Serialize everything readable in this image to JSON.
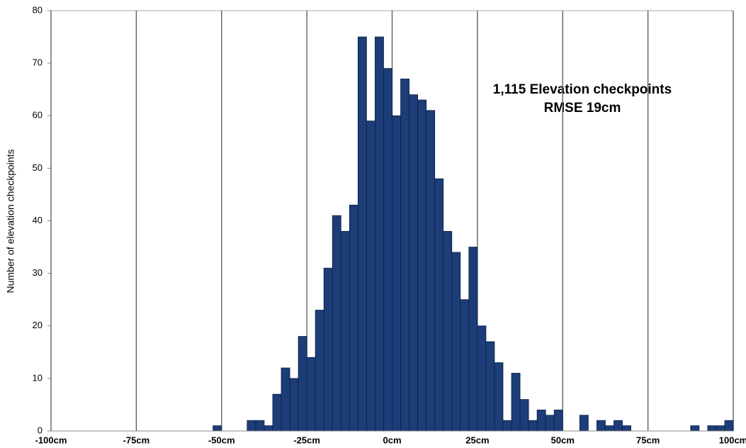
{
  "chart_data": {
    "type": "histogram",
    "ylabel": "Number of elevation checkpoints",
    "annotations": [
      "1,115 Elevation checkpoints",
      "RMSE 19cm"
    ],
    "bins": [
      -100,
      -97.5,
      -95,
      -92.5,
      -90,
      -87.5,
      -85,
      -82.5,
      -80,
      -77.5,
      -75,
      -72.5,
      -70,
      -67.5,
      -65,
      -62.5,
      -60,
      -57.5,
      -55,
      -52.5,
      -50,
      -47.5,
      -45,
      -42.5,
      -40,
      -37.5,
      -35,
      -32.5,
      -30,
      -27.5,
      -25,
      -22.5,
      -20,
      -17.5,
      -15,
      -12.5,
      -10,
      -7.5,
      -5,
      -2.5,
      0,
      2.5,
      5,
      7.5,
      10,
      12.5,
      15,
      17.5,
      20,
      22.5,
      25,
      27.5,
      30,
      32.5,
      35,
      37.5,
      40,
      42.5,
      45,
      47.5,
      50,
      52.5,
      55,
      57.5,
      60,
      62.5,
      65,
      67.5,
      70,
      72.5,
      75,
      77.5,
      80,
      82.5,
      85,
      87.5,
      90,
      92.5,
      95,
      97.5,
      100
    ],
    "counts": [
      0,
      0,
      0,
      0,
      0,
      0,
      0,
      0,
      0,
      0,
      0,
      0,
      0,
      0,
      0,
      0,
      0,
      0,
      0,
      1,
      0,
      0,
      0,
      2,
      2,
      1,
      7,
      12,
      10,
      18,
      14,
      23,
      31,
      41,
      38,
      43,
      75,
      59,
      75,
      69,
      60,
      67,
      64,
      63,
      61,
      48,
      38,
      34,
      25,
      35,
      20,
      17,
      13,
      2,
      11,
      6,
      2,
      4,
      3,
      4,
      0,
      0,
      3,
      0,
      2,
      1,
      2,
      1,
      0,
      0,
      0,
      0,
      0,
      0,
      0,
      1,
      0,
      1,
      1,
      2
    ],
    "color": "#1c3d78",
    "edgecolor": "#0a1e44",
    "xlim": [
      -100,
      100
    ],
    "xticks": [
      {
        "value": -100,
        "label": "-100cm"
      },
      {
        "value": -75,
        "label": "-75cm"
      },
      {
        "value": -50,
        "label": "-50cm"
      },
      {
        "value": -25,
        "label": "-25cm"
      },
      {
        "value": 0,
        "label": "0cm"
      },
      {
        "value": 25,
        "label": "25cm"
      },
      {
        "value": 50,
        "label": "50cm"
      },
      {
        "value": 75,
        "label": "75cm"
      },
      {
        "value": 100,
        "label": "100cm"
      }
    ],
    "ylim": [
      0,
      80
    ],
    "yticks": [
      0,
      10,
      20,
      30,
      40,
      50,
      60,
      70,
      80
    ],
    "xgrid": true
  }
}
